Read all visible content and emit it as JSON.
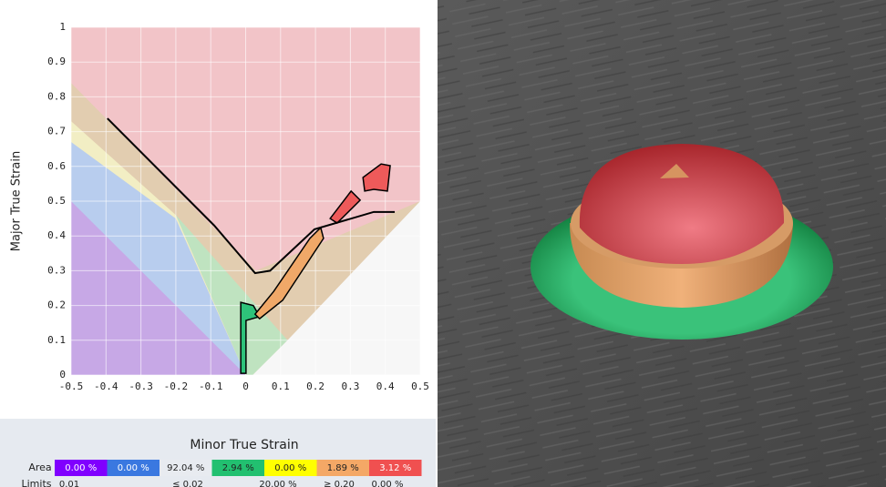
{
  "chart_data": {
    "type": "flc",
    "xlabel": "Minor True Strain",
    "ylabel": "Major True Strain",
    "xlim": [
      -0.5,
      0.5
    ],
    "ylim": [
      0,
      1
    ],
    "xticks": [
      -0.5,
      -0.4,
      -0.3,
      -0.2,
      -0.1,
      0,
      0.1,
      0.2,
      0.3,
      0.4,
      0.5
    ],
    "yticks": [
      0,
      0.1,
      0.2,
      0.3,
      0.4,
      0.5,
      0.6,
      0.7,
      0.8,
      0.9,
      1
    ],
    "grid": true,
    "zones": [
      {
        "color": "#f2c4c8",
        "x": [
          -0.5,
          0.5,
          0.5,
          -0.5
        ],
        "y": [
          0,
          0,
          1,
          1
        ]
      },
      {
        "color": "#e2cdb0",
        "x": [
          -0.5,
          0.03,
          0.5,
          0.5,
          -0.5
        ],
        "y": [
          0.84,
          0.3,
          0.5,
          0,
          0
        ]
      },
      {
        "color": "#f2eec4",
        "x": [
          -0.5,
          -0.2,
          0,
          -0.5
        ],
        "y": [
          0.73,
          0.46,
          0,
          0
        ]
      },
      {
        "color": "#bfe3c0",
        "x": [
          -0.2,
          0.12,
          0.02,
          0
        ],
        "y": [
          0.46,
          0.1,
          0,
          0
        ]
      },
      {
        "color": "#b8cdee",
        "x": [
          -0.5,
          -0.2,
          0,
          -0.5
        ],
        "y": [
          0.67,
          0.45,
          0,
          0
        ]
      },
      {
        "color": "#c7a8e6",
        "x": [
          -0.5,
          0,
          -0.5
        ],
        "y": [
          0.5,
          0,
          0
        ]
      },
      {
        "color": "#f7f7f7",
        "x": [
          0.02,
          0.5,
          0.5,
          0.12
        ],
        "y": [
          0,
          0,
          0.5,
          0.1
        ]
      }
    ],
    "strain_regions": [
      {
        "color": "#2ec27a",
        "x": [
          -0.014,
          0.022,
          0.04,
          0.001,
          0.001,
          -0.014
        ],
        "y": [
          0.209,
          0.2,
          0.168,
          0.157,
          0.005,
          0.005
        ]
      },
      {
        "color": "#f0a868",
        "x": [
          0.027,
          0.08,
          0.184,
          0.215,
          0.223,
          0.106,
          0.04
        ],
        "y": [
          0.175,
          0.24,
          0.393,
          0.424,
          0.393,
          0.215,
          0.162
        ]
      },
      {
        "color": "#ee5a5a",
        "x": [
          0.242,
          0.302,
          0.328,
          0.262
        ],
        "y": [
          0.45,
          0.529,
          0.503,
          0.437
        ]
      },
      {
        "color": "#ee5a5a",
        "x": [
          0.336,
          0.388,
          0.414,
          0.406,
          0.367,
          0.341
        ],
        "y": [
          0.568,
          0.607,
          0.602,
          0.529,
          0.534,
          0.529
        ]
      }
    ],
    "curve": {
      "color": "#000000",
      "x": [
        -0.396,
        -0.09,
        0.027,
        0.07,
        0.197,
        0.367,
        0.427
      ],
      "y": [
        0.738,
        0.43,
        0.293,
        0.3,
        0.419,
        0.469,
        0.469
      ]
    },
    "area_table": {
      "label": "Area",
      "values": [
        0.0,
        0.0,
        92.04,
        2.94,
        0.0,
        1.89,
        3.12
      ],
      "value_labels": [
        "0.00 %",
        "0.00 %",
        "92.04 %",
        "2.94 %",
        "0.00 %",
        "1.89 %",
        "3.12 %"
      ],
      "colors": [
        "#8000ff",
        "#3a78e0",
        "#e8ebf0",
        "#22c070",
        "#ffff00",
        "#f4a866",
        "#f05050"
      ]
    },
    "limits": {
      "label": "Limits",
      "values": [
        "0.01",
        "≤ 0.02",
        "20.00 %",
        "≥ 0.20",
        "0.00 %"
      ]
    }
  }
}
